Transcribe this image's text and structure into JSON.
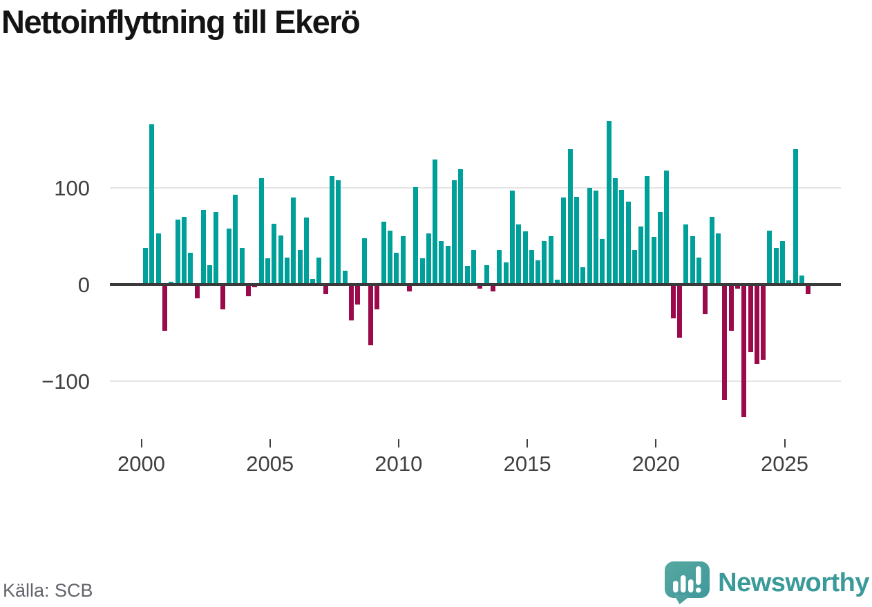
{
  "title": "Nettoinflyttning till Ekerö",
  "source": "Källa: SCB",
  "branding": {
    "name": "Newsworthy",
    "logo_icon": "newsworthy-speech-bubble-chart-icon"
  },
  "colors": {
    "positive": "#00a09a",
    "negative": "#9b0a4a",
    "grid": "#e4e4e4",
    "zero_line": "#3a3a3a",
    "axis_text": "#404040",
    "source_text": "#63636b",
    "brand_teal": "#3a9a99",
    "logo_gradient_start": "#57a8a0",
    "logo_gradient_end": "#3f989c"
  },
  "chart_data": {
    "type": "bar",
    "title": "Nettoinflyttning till Ekerö",
    "x_unit": "quarter",
    "grid": "horizontal",
    "legend": "none",
    "ylim": [
      -140,
      170
    ],
    "y_ticks": [
      "100",
      "0",
      "−100"
    ],
    "y_tick_values": [
      100,
      0,
      -100
    ],
    "x_ticks": [
      "2000",
      "2005",
      "2010",
      "2015",
      "2020",
      "2025"
    ],
    "x_tick_years": [
      2000,
      2005,
      2010,
      2015,
      2020,
      2025
    ],
    "x": [
      "2000Q1",
      "2000Q2",
      "2000Q3",
      "2000Q4",
      "2001Q1",
      "2001Q2",
      "2001Q3",
      "2001Q4",
      "2002Q1",
      "2002Q2",
      "2002Q3",
      "2002Q4",
      "2003Q1",
      "2003Q2",
      "2003Q3",
      "2003Q4",
      "2004Q1",
      "2004Q2",
      "2004Q3",
      "2004Q4",
      "2005Q1",
      "2005Q2",
      "2005Q3",
      "2005Q4",
      "2006Q1",
      "2006Q2",
      "2006Q3",
      "2006Q4",
      "2007Q1",
      "2007Q2",
      "2007Q3",
      "2007Q4",
      "2008Q1",
      "2008Q2",
      "2008Q3",
      "2008Q4",
      "2009Q1",
      "2009Q2",
      "2009Q3",
      "2009Q4",
      "2010Q1",
      "2010Q2",
      "2010Q3",
      "2010Q4",
      "2011Q1",
      "2011Q2",
      "2011Q3",
      "2011Q4",
      "2012Q1",
      "2012Q2",
      "2012Q3",
      "2012Q4",
      "2013Q1",
      "2013Q2",
      "2013Q3",
      "2013Q4",
      "2014Q1",
      "2014Q2",
      "2014Q3",
      "2014Q4",
      "2015Q1",
      "2015Q2",
      "2015Q3",
      "2015Q4",
      "2016Q1",
      "2016Q2",
      "2016Q3",
      "2016Q4",
      "2017Q1",
      "2017Q2",
      "2017Q3",
      "2017Q4",
      "2018Q1",
      "2018Q2",
      "2018Q3",
      "2018Q4",
      "2019Q1",
      "2019Q2",
      "2019Q3",
      "2019Q4",
      "2020Q1",
      "2020Q2",
      "2020Q3",
      "2020Q4",
      "2021Q1",
      "2021Q2",
      "2021Q3",
      "2021Q4",
      "2022Q1",
      "2022Q2",
      "2022Q3",
      "2022Q4",
      "2023Q1",
      "2023Q2",
      "2023Q3",
      "2023Q4",
      "2024Q1",
      "2024Q2",
      "2024Q3",
      "2024Q4",
      "2025Q1",
      "2025Q2",
      "2025Q3",
      "2025Q4"
    ],
    "values": [
      38,
      166,
      53,
      -48,
      3,
      67,
      70,
      33,
      -14,
      77,
      20,
      75,
      -26,
      58,
      93,
      38,
      -12,
      -3,
      110,
      27,
      63,
      51,
      28,
      90,
      36,
      69,
      6,
      28,
      -10,
      112,
      108,
      14,
      -37,
      -21,
      48,
      -63,
      -26,
      65,
      56,
      33,
      50,
      -7,
      101,
      27,
      53,
      129,
      45,
      40,
      108,
      119,
      19,
      36,
      -4,
      20,
      -7,
      36,
      23,
      97,
      62,
      55,
      36,
      25,
      45,
      50,
      5,
      90,
      140,
      91,
      18,
      100,
      97,
      47,
      169,
      110,
      98,
      86,
      36,
      60,
      112,
      49,
      75,
      118,
      -35,
      -55,
      62,
      50,
      28,
      -31,
      70,
      53,
      -119,
      -48,
      -4,
      -137,
      -70,
      -82,
      -78,
      56,
      38,
      45,
      4,
      140,
      9,
      -10
    ]
  }
}
